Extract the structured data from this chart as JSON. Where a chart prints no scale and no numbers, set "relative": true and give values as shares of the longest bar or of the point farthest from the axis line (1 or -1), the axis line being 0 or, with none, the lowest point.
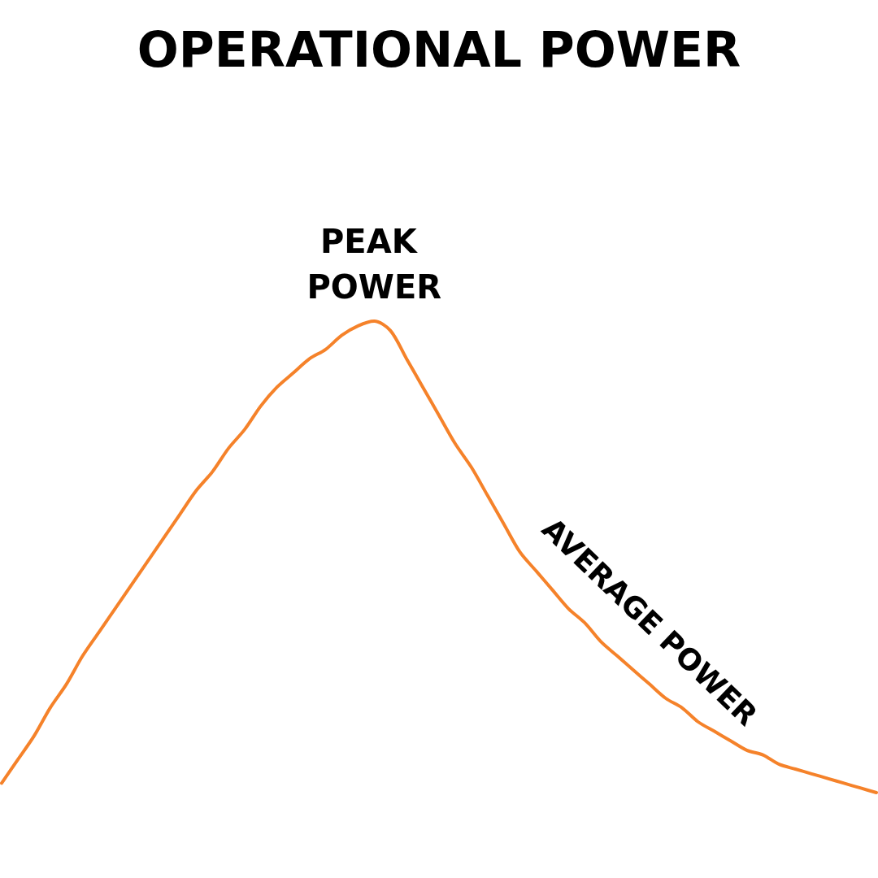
{
  "chart_data": {
    "type": "line",
    "title": "OPERATIONAL POWER",
    "categories": [
      null,
      null,
      null,
      null,
      null,
      null,
      null,
      null,
      null,
      null,
      null,
      null,
      null,
      null,
      null,
      null,
      null,
      null,
      null,
      null,
      null,
      null,
      null,
      null,
      null,
      null,
      null,
      null,
      null,
      null,
      null,
      null,
      null,
      null,
      null,
      null,
      null,
      null,
      null,
      null,
      null,
      null,
      null,
      null,
      null,
      null,
      null,
      null,
      null,
      null,
      null,
      null,
      null,
      null,
      null
    ],
    "values": [
      0.02,
      0.07,
      0.12,
      0.18,
      0.23,
      0.29,
      0.34,
      0.39,
      0.44,
      0.49,
      0.54,
      0.59,
      0.64,
      0.68,
      0.73,
      0.77,
      0.82,
      0.86,
      0.89,
      0.92,
      0.94,
      0.97,
      0.99,
      1,
      0.98,
      0.92,
      0.86,
      0.8,
      0.74,
      0.69,
      0.63,
      0.57,
      0.51,
      0.47,
      0.43,
      0.39,
      0.36,
      0.32,
      0.29,
      0.26,
      0.23,
      0.2,
      0.18,
      0.15,
      0.13,
      0.11,
      0.09,
      0.08,
      0.06,
      0.05,
      0.04,
      0.03,
      0.02,
      0.01,
      0
    ],
    "color": "#f5822a",
    "relative": true,
    "annotations": [
      "PEAK POWER",
      "AVERAGE POWER"
    ]
  }
}
